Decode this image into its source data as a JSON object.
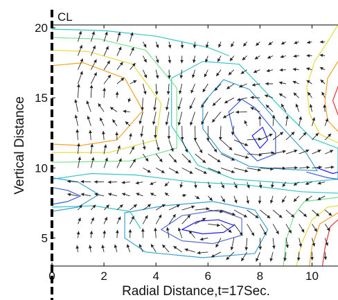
{
  "chart_data": {
    "type": "contour-quiver",
    "title": "",
    "xlabel": "Radial Distance,t=17Sec.",
    "ylabel": "Vertical Distance",
    "centerline_label": "CL",
    "xlim": [
      0,
      11
    ],
    "ylim": [
      3,
      20.2
    ],
    "x_ticks": [
      0,
      2,
      4,
      6,
      8,
      10
    ],
    "y_ticks": [
      5,
      10,
      15,
      20
    ],
    "grid": false,
    "contours": [
      {
        "color": "#1a1aff",
        "points": [
          [
            5,
            5.6
          ],
          [
            5.6,
            6.2
          ],
          [
            6.4,
            6.3
          ],
          [
            7,
            5.9
          ],
          [
            6.6,
            5.4
          ],
          [
            5.8,
            5.3
          ],
          [
            5,
            5.6
          ]
        ]
      },
      {
        "color": "#5a6bd6",
        "points": [
          [
            4.2,
            5.6
          ],
          [
            5,
            6.6
          ],
          [
            6.4,
            7.0
          ],
          [
            7.3,
            6.4
          ],
          [
            7.3,
            5.2
          ],
          [
            6.2,
            4.6
          ],
          [
            5,
            4.8
          ],
          [
            4.2,
            5.6
          ]
        ]
      },
      {
        "color": "#3aa0d8",
        "points": [
          [
            2.8,
            6.8
          ],
          [
            4.3,
            7.3
          ],
          [
            6.2,
            7.6
          ],
          [
            7.8,
            7.0
          ],
          [
            8.3,
            5.6
          ],
          [
            7.8,
            3.9
          ],
          [
            5.8,
            3.6
          ],
          [
            3.6,
            4.0
          ],
          [
            2.8,
            5.0
          ],
          [
            2.8,
            6.8
          ]
        ]
      },
      {
        "color": "#1a1aff",
        "points": [
          [
            7.7,
            12.3
          ],
          [
            8.1,
            12.9
          ],
          [
            8.3,
            12.0
          ],
          [
            8.0,
            11.4
          ],
          [
            7.7,
            12.3
          ]
        ]
      },
      {
        "color": "#3d5bd9",
        "points": [
          [
            6.8,
            14.0
          ],
          [
            7.3,
            14.9
          ],
          [
            7.8,
            14.3
          ],
          [
            8.6,
            12.5
          ],
          [
            8.6,
            11.0
          ],
          [
            7.9,
            10.5
          ],
          [
            7.4,
            11.4
          ],
          [
            7.0,
            12.4
          ],
          [
            6.8,
            14.0
          ]
        ]
      },
      {
        "color": "#3aa0d8",
        "points": [
          [
            5.8,
            14.6
          ],
          [
            6.6,
            16.3
          ],
          [
            7.6,
            15.6
          ],
          [
            8.8,
            13.0
          ],
          [
            9.8,
            11.0
          ],
          [
            10.2,
            9.8
          ],
          [
            9.0,
            9.9
          ],
          [
            7.6,
            10.1
          ],
          [
            6.5,
            11.1
          ],
          [
            5.8,
            12.8
          ],
          [
            5.8,
            14.6
          ]
        ]
      },
      {
        "color": "#34c6c6",
        "points": [
          [
            4.6,
            16.4
          ],
          [
            5.8,
            17.6
          ],
          [
            7.2,
            17.4
          ],
          [
            8.8,
            14.3
          ],
          [
            10.0,
            12.1
          ],
          [
            11,
            11.4
          ],
          [
            11,
            9.2
          ],
          [
            9.2,
            8.9
          ],
          [
            7.0,
            9.2
          ],
          [
            5.6,
            10.2
          ],
          [
            4.6,
            13.0
          ],
          [
            4.6,
            16.4
          ]
        ]
      },
      {
        "color": "#f3a020",
        "points": [
          [
            0,
            17.3
          ],
          [
            1.2,
            17.5
          ],
          [
            2.8,
            16.4
          ],
          [
            3.5,
            14.1
          ],
          [
            2.5,
            12.0
          ],
          [
            1.1,
            11.6
          ],
          [
            0,
            11.7
          ]
        ]
      },
      {
        "color": "#e6dc3a",
        "points": [
          [
            0,
            18.4
          ],
          [
            1.4,
            18.3
          ],
          [
            3.1,
            17.4
          ],
          [
            4.2,
            14.6
          ],
          [
            4.0,
            12.0
          ],
          [
            2.2,
            11.1
          ],
          [
            0,
            11.1
          ]
        ]
      },
      {
        "color": "#78e090",
        "points": [
          [
            0,
            19.3
          ],
          [
            1.8,
            19.2
          ],
          [
            3.6,
            18.4
          ],
          [
            4.8,
            15.7
          ],
          [
            4.8,
            11.4
          ],
          [
            3.0,
            10.5
          ],
          [
            0,
            10.4
          ]
        ]
      },
      {
        "color": "#34c6c6",
        "points": [
          [
            0,
            19.9
          ],
          [
            2.0,
            19.8
          ],
          [
            4.0,
            19.4
          ],
          [
            6.0,
            18.6
          ],
          [
            6.8,
            18.0
          ]
        ]
      },
      {
        "color": "#34c6c6",
        "points": [
          [
            0,
            9.2
          ],
          [
            1.5,
            9.6
          ],
          [
            3.2,
            9.5
          ],
          [
            5.4,
            9.0
          ],
          [
            7.4,
            8.8
          ],
          [
            9.6,
            8.3
          ],
          [
            11,
            8.2
          ]
        ]
      },
      {
        "color": "#34c6c6",
        "points": [
          [
            0,
            7.2
          ],
          [
            1.6,
            7.3
          ],
          [
            3.0,
            6.9
          ],
          [
            3.4,
            5.7
          ]
        ]
      },
      {
        "color": "#3d5bd9",
        "points": [
          [
            0,
            8.6
          ],
          [
            0.6,
            8.4
          ],
          [
            1.1,
            8.0
          ],
          [
            0.6,
            7.6
          ],
          [
            0,
            7.4
          ]
        ]
      },
      {
        "color": "#3aa0d8",
        "points": [
          [
            0,
            9.3
          ],
          [
            1.0,
            9.0
          ],
          [
            1.8,
            8.1
          ],
          [
            1.0,
            7.2
          ],
          [
            0,
            6.9
          ]
        ]
      },
      {
        "color": "#1a1aff",
        "points": [
          [
            10.2,
            10.0
          ],
          [
            10.8,
            9.6
          ],
          [
            11,
            9.7
          ]
        ]
      },
      {
        "color": "#3d5bd9",
        "points": [
          [
            9.8,
            9.7
          ],
          [
            10.6,
            9.3
          ],
          [
            11,
            9.2
          ]
        ]
      },
      {
        "color": "#e6dc3a",
        "points": [
          [
            11,
            20.2
          ],
          [
            10.6,
            19.0
          ],
          [
            10.1,
            17.6
          ],
          [
            9.8,
            15.8
          ],
          [
            9.9,
            13.9
          ],
          [
            10.3,
            12.4
          ],
          [
            11,
            11.8
          ]
        ]
      },
      {
        "color": "#f3a020",
        "points": [
          [
            11,
            17.6
          ],
          [
            10.6,
            16.4
          ],
          [
            10.5,
            14.8
          ],
          [
            10.6,
            13.4
          ],
          [
            11,
            12.6
          ]
        ]
      },
      {
        "color": "#e83030",
        "points": [
          [
            11,
            15.8
          ],
          [
            10.8,
            14.8
          ],
          [
            11,
            13.8
          ]
        ]
      },
      {
        "color": "#78e090",
        "points": [
          [
            8.9,
            3.0
          ],
          [
            9.0,
            4.8
          ],
          [
            9.3,
            6.6
          ],
          [
            9.7,
            7.6
          ],
          [
            11,
            7.9
          ]
        ]
      },
      {
        "color": "#e6dc3a",
        "points": [
          [
            9.4,
            3.0
          ],
          [
            9.6,
            4.6
          ],
          [
            10.0,
            6.3
          ],
          [
            10.6,
            7.2
          ],
          [
            11,
            7.3
          ]
        ]
      },
      {
        "color": "#f3a020",
        "points": [
          [
            9.9,
            3.0
          ],
          [
            10.0,
            4.4
          ],
          [
            10.3,
            6.0
          ],
          [
            11,
            6.8
          ]
        ]
      },
      {
        "color": "#e83030",
        "points": [
          [
            10.4,
            3.0
          ],
          [
            10.5,
            4.3
          ],
          [
            10.7,
            5.8
          ],
          [
            11,
            6.3
          ]
        ]
      }
    ],
    "vectors": {
      "x": [
        1,
        1.5,
        2,
        2.5,
        3,
        3.5,
        4,
        4.5,
        5,
        5.5,
        6,
        6.5,
        7,
        7.5,
        8,
        8.5,
        9,
        9.5,
        10,
        10.5
      ],
      "y": [
        4,
        5,
        6,
        7,
        8,
        9,
        10,
        11,
        12,
        13,
        14,
        15,
        16,
        17,
        18,
        19
      ],
      "scale": 0.4
    }
  }
}
